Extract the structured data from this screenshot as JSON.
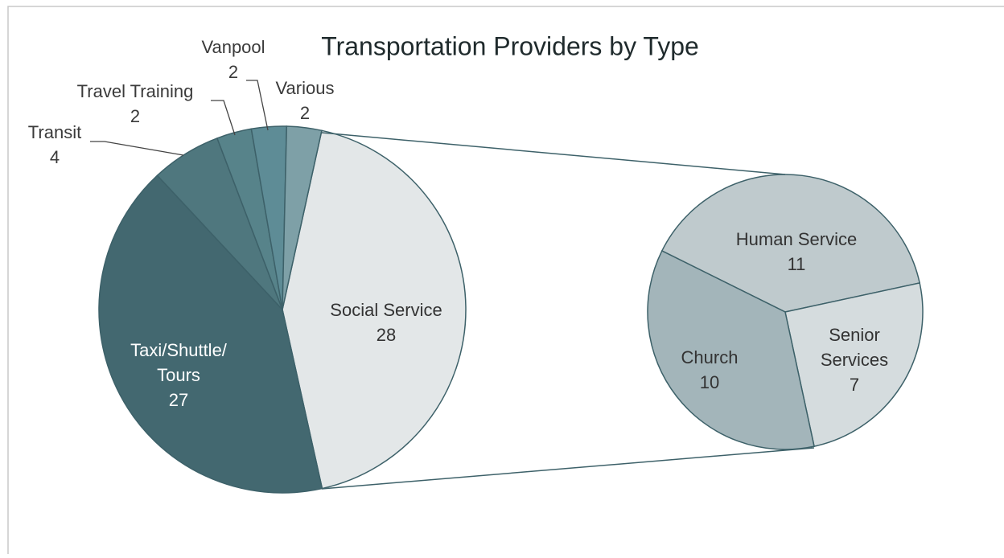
{
  "chart_data": [
    {
      "type": "pie",
      "title": "Transportation Providers by Type",
      "categories": [
        "Social Service",
        "Taxi/Shuttle/Tours",
        "Transit",
        "Travel Training",
        "Vanpool",
        "Various"
      ],
      "values": [
        28,
        27,
        4,
        2,
        2,
        2
      ],
      "colors": [
        "#e3e7e8",
        "#436870",
        "#4f777e",
        "#57838a",
        "#5e8c96",
        "#7ea0a7"
      ]
    },
    {
      "type": "pie",
      "categories": [
        "Human Service",
        "Senior Services",
        "Church"
      ],
      "values": [
        11,
        7,
        10
      ],
      "colors": [
        "#bfcacd",
        "#d5dcde",
        "#a3b5ba"
      ]
    }
  ]
}
